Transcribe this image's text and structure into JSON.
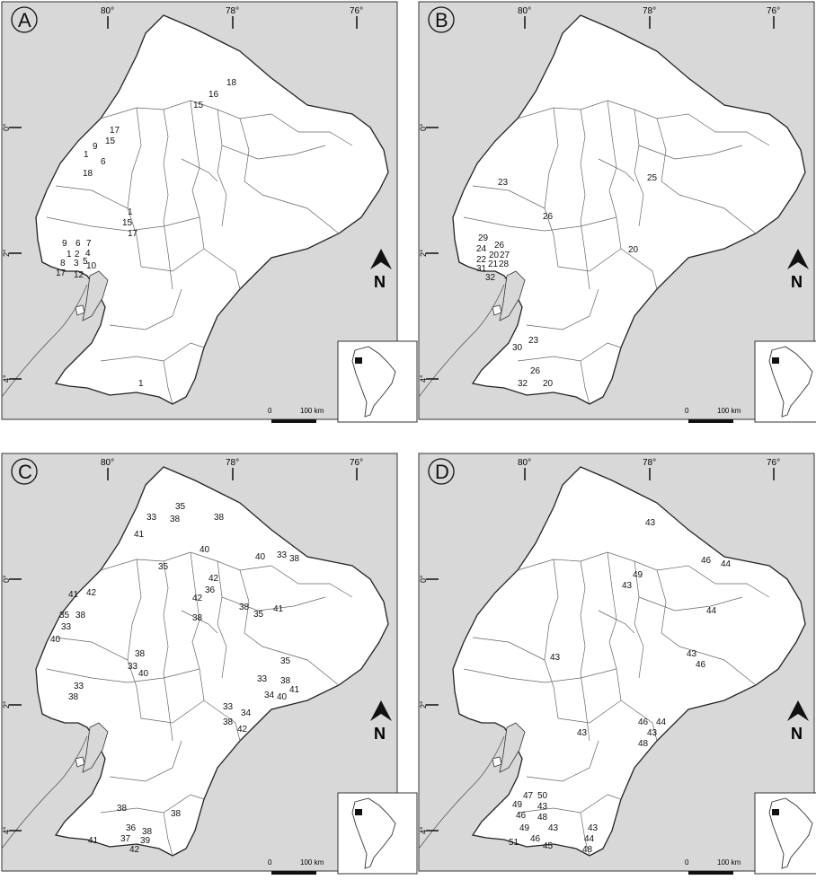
{
  "figure": {
    "panels": [
      {
        "letter": "A",
        "lon_ticks": [
          "80°",
          "78°",
          "76°"
        ],
        "lat_ticks": [
          "0°",
          "2°",
          "4°"
        ],
        "scale_zero": "0",
        "scale_label": "100 km",
        "north_label": "N",
        "numbers": [
          "18",
          "16",
          "15",
          "17",
          "15",
          "9",
          "1",
          "6",
          "18",
          "1",
          "15",
          "17",
          "9",
          "6",
          "7",
          "1",
          "2",
          "4",
          "8",
          "3",
          "5",
          "10",
          "17",
          "12",
          "1"
        ]
      },
      {
        "letter": "B",
        "lon_ticks": [
          "80°",
          "78°",
          "76°"
        ],
        "lat_ticks": [
          "0°",
          "2°",
          "4°"
        ],
        "scale_zero": "0",
        "scale_label": "100 km",
        "north_label": "N",
        "numbers": [
          "23",
          "25",
          "26",
          "29",
          "26",
          "24",
          "20",
          "27",
          "22",
          "21",
          "28",
          "31",
          "32",
          "20",
          "23",
          "30",
          "26",
          "32",
          "20"
        ]
      },
      {
        "letter": "C",
        "lon_ticks": [
          "80°",
          "78°",
          "76°"
        ],
        "lat_ticks": [
          "0°",
          "2°",
          "4°"
        ],
        "scale_zero": "0",
        "scale_label": "100 km",
        "north_label": "N",
        "numbers": [
          "35",
          "33",
          "38",
          "38",
          "41",
          "40",
          "40",
          "33",
          "38",
          "35",
          "42",
          "36",
          "41",
          "42",
          "42",
          "38",
          "41",
          "35",
          "38",
          "38",
          "35",
          "33",
          "40",
          "38",
          "33",
          "40",
          "35",
          "33",
          "38",
          "34",
          "40",
          "41",
          "33",
          "38",
          "33",
          "34",
          "38",
          "42",
          "38",
          "38",
          "36",
          "38",
          "37",
          "39",
          "41",
          "42"
        ]
      },
      {
        "letter": "D",
        "lon_ticks": [
          "80°",
          "78°",
          "76°"
        ],
        "lat_ticks": [
          "0°",
          "2°",
          "4°"
        ],
        "scale_zero": "0",
        "scale_label": "100 km",
        "north_label": "N",
        "numbers": [
          "43",
          "46",
          "44",
          "49",
          "43",
          "44",
          "43",
          "43",
          "46",
          "43",
          "46",
          "44",
          "43",
          "48",
          "47",
          "50",
          "49",
          "43",
          "46",
          "48",
          "49",
          "43",
          "51",
          "46",
          "45",
          "43",
          "44",
          "48"
        ]
      }
    ]
  }
}
